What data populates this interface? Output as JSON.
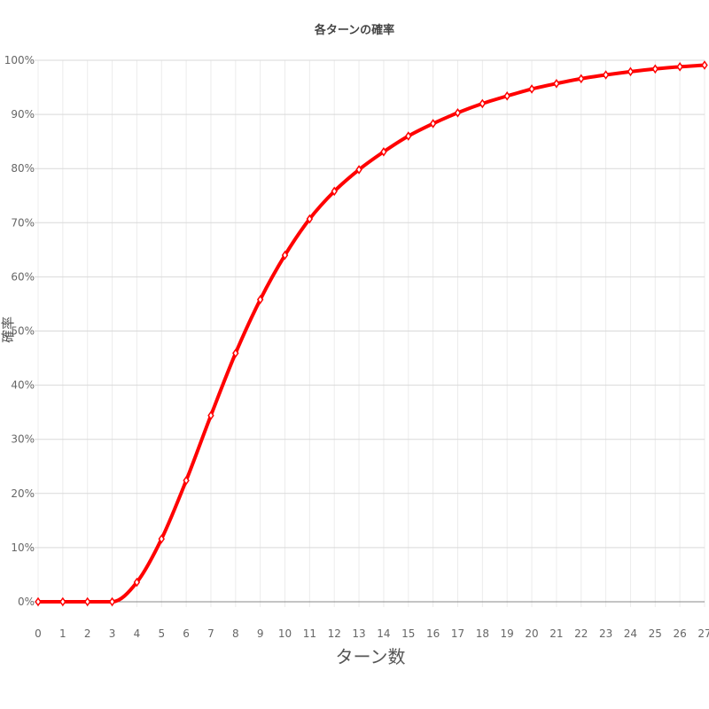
{
  "chart_data": {
    "type": "line",
    "title": "各ターンの確率",
    "xlabel": "ターン数",
    "ylabel": "確率",
    "x": [
      0,
      1,
      2,
      3,
      4,
      5,
      6,
      7,
      8,
      9,
      10,
      11,
      12,
      13,
      14,
      15,
      16,
      17,
      18,
      19,
      20,
      21,
      22,
      23,
      24,
      25,
      26,
      27
    ],
    "y_tick_labels": [
      "0%",
      "10%",
      "20%",
      "30%",
      "40%",
      "50%",
      "60%",
      "70%",
      "80%",
      "90%",
      "100%"
    ],
    "ylim": [
      0,
      100
    ],
    "xlim": [
      0,
      27
    ],
    "grid": true,
    "series": [
      {
        "color": "#ff0000",
        "values": [
          0,
          0,
          0,
          0,
          3.6,
          11.6,
          22.4,
          34.4,
          45.9,
          55.8,
          64.0,
          70.7,
          75.8,
          79.8,
          83.1,
          86.0,
          88.3,
          90.3,
          92.0,
          93.4,
          94.7,
          95.7,
          96.6,
          97.3,
          97.9,
          98.4,
          98.8,
          99.1
        ]
      }
    ]
  }
}
